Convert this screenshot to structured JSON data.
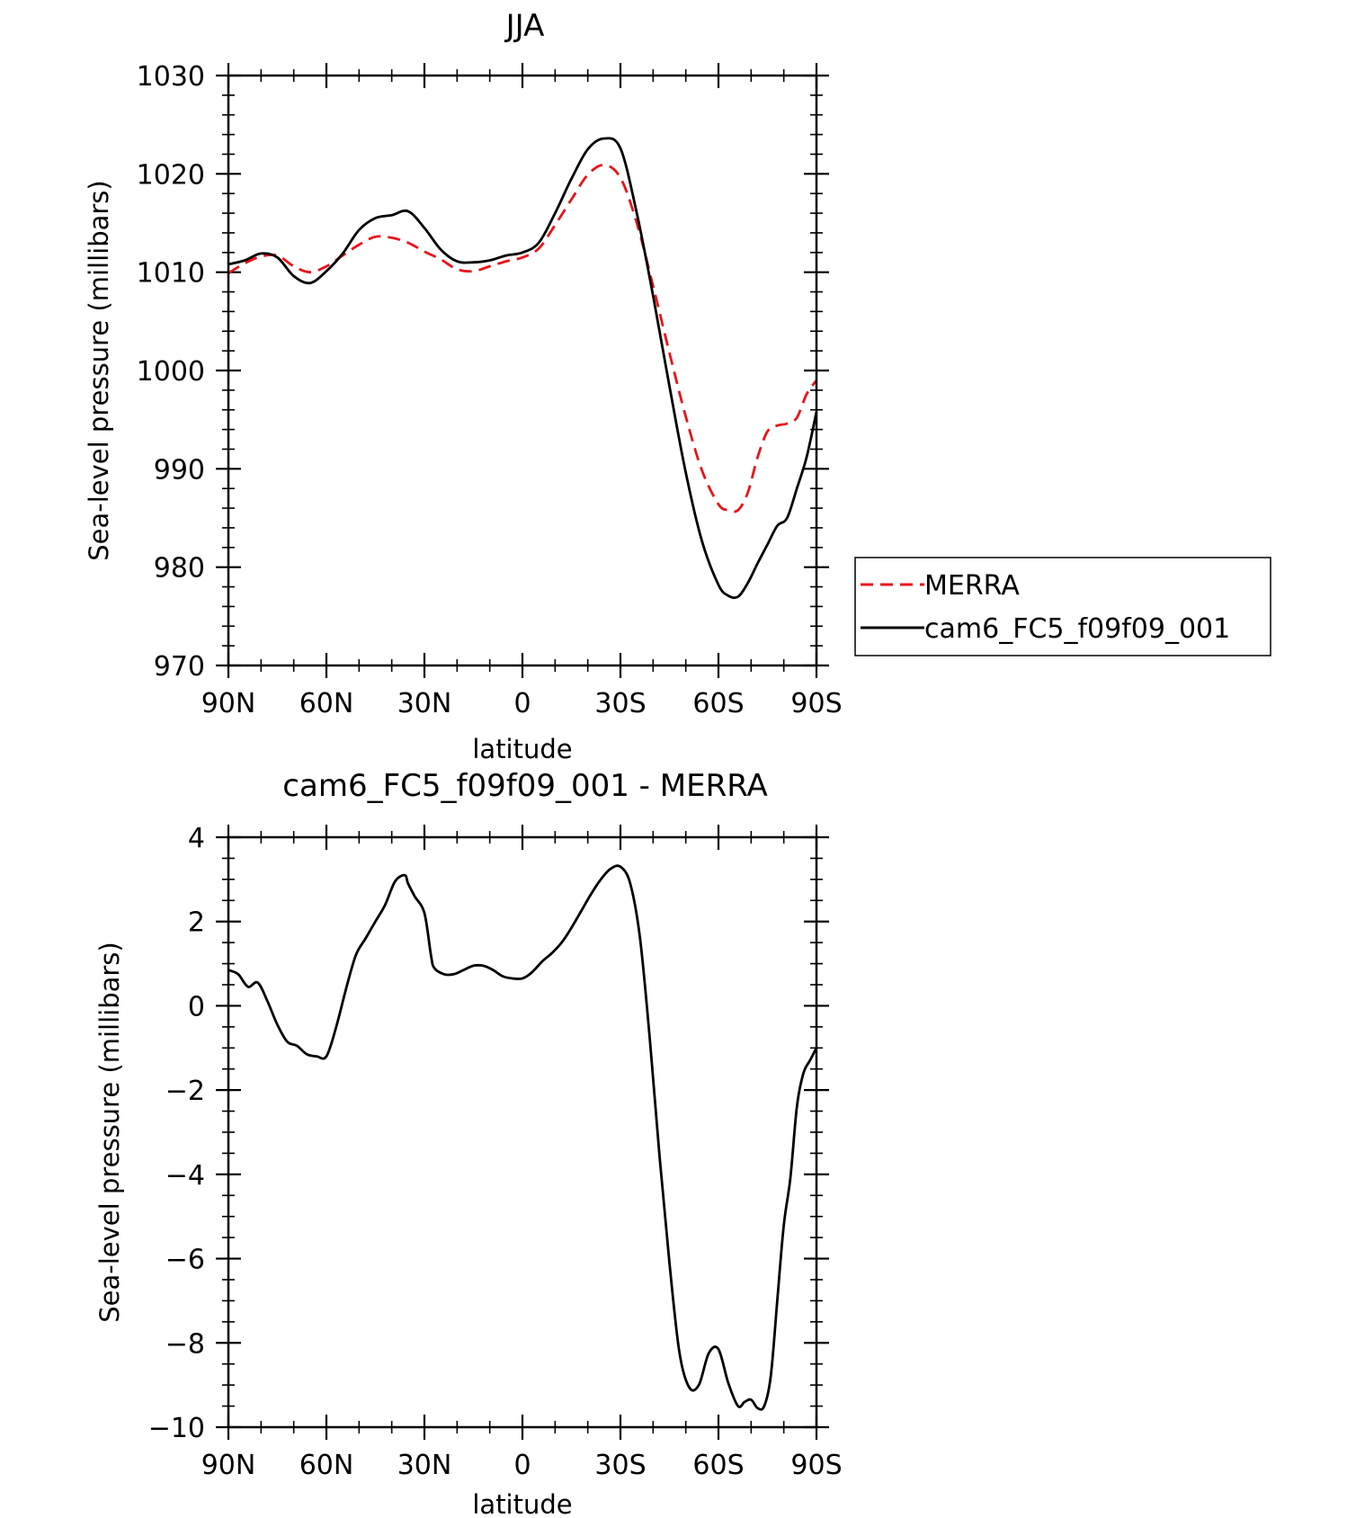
{
  "chart_data": [
    {
      "type": "line",
      "title": "JJA",
      "xlabel": "latitude",
      "ylabel": "Sea-level pressure (millibars)",
      "xlim": [
        90,
        -90
      ],
      "ylim": [
        970,
        1030
      ],
      "xticks": [
        90,
        60,
        30,
        0,
        -30,
        -60,
        -90
      ],
      "xticklabels": [
        "90N",
        "60N",
        "30N",
        "0",
        "30S",
        "60S",
        "90S"
      ],
      "yticks": [
        970,
        980,
        990,
        1000,
        1010,
        1020,
        1030
      ],
      "yticklabels": [
        "970",
        "980",
        "990",
        "1000",
        "1010",
        "1020",
        "1030"
      ],
      "legend": {
        "placement": "right"
      },
      "series": [
        {
          "name": "MERRA",
          "color": "#e8141a",
          "style": "dashed",
          "x": [
            90,
            85,
            80,
            75,
            70,
            65,
            60,
            55,
            50,
            45,
            40,
            35,
            30,
            25,
            20,
            15,
            10,
            5,
            0,
            -5,
            -10,
            -15,
            -20,
            -25,
            -30,
            -35,
            -40,
            -45,
            -50,
            -55,
            -60,
            -63,
            -66,
            -69,
            -72,
            -75,
            -78,
            -81,
            -84,
            -87,
            -90
          ],
          "y": [
            1009.9,
            1010.9,
            1011.6,
            1011.7,
            1010.6,
            1010.0,
            1010.6,
            1011.7,
            1012.8,
            1013.6,
            1013.5,
            1013.0,
            1012.1,
            1011.3,
            1010.3,
            1010.1,
            1010.6,
            1011.1,
            1011.5,
            1012.4,
            1014.8,
            1017.4,
            1019.9,
            1020.9,
            1019.6,
            1015.0,
            1008.6,
            1001.8,
            995.3,
            989.8,
            986.4,
            985.8,
            985.8,
            987.6,
            991.2,
            993.8,
            994.4,
            994.6,
            995.2,
            997.6,
            999.0
          ]
        },
        {
          "name": "cam6_FC5_f09f09_001",
          "color": "#000000",
          "style": "solid",
          "x": [
            90,
            85,
            80,
            75,
            70,
            65,
            60,
            55,
            50,
            45,
            40,
            35,
            30,
            25,
            20,
            15,
            10,
            5,
            0,
            -5,
            -10,
            -15,
            -20,
            -25,
            -30,
            -35,
            -40,
            -45,
            -50,
            -55,
            -60,
            -63,
            -66,
            -69,
            -72,
            -75,
            -78,
            -81,
            -84,
            -87,
            -90
          ],
          "y": [
            1010.8,
            1011.2,
            1011.9,
            1011.5,
            1009.6,
            1008.9,
            1010.1,
            1011.9,
            1014.3,
            1015.5,
            1015.8,
            1016.2,
            1014.5,
            1012.3,
            1011.1,
            1011.0,
            1011.2,
            1011.7,
            1012.0,
            1013.0,
            1016.0,
            1019.5,
            1022.5,
            1023.6,
            1022.6,
            1016.0,
            1007.6,
            998.4,
            989.6,
            982.6,
            978.2,
            977.1,
            977.0,
            978.4,
            980.4,
            982.3,
            984.2,
            985.0,
            988.0,
            991.2,
            995.8
          ]
        }
      ]
    },
    {
      "type": "line",
      "title": "cam6_FC5_f09f09_001 - MERRA",
      "xlabel": "latitude",
      "ylabel": "Sea-level pressure (millibars)",
      "xlim": [
        90,
        -90
      ],
      "ylim": [
        -10,
        4
      ],
      "xticks": [
        90,
        60,
        30,
        0,
        -30,
        -60,
        -90
      ],
      "xticklabels": [
        "90N",
        "60N",
        "30N",
        "0",
        "30S",
        "60S",
        "90S"
      ],
      "yticks": [
        -10,
        -8,
        -6,
        -4,
        -2,
        0,
        2,
        4
      ],
      "yticklabels": [
        "−10",
        "−8",
        "−6",
        "−4",
        "−2",
        "0",
        "2",
        "4"
      ],
      "series": [
        {
          "color": "#000000",
          "style": "solid",
          "x": [
            90,
            87,
            84,
            81,
            78,
            75,
            72,
            69,
            66,
            63,
            60,
            57,
            54,
            51,
            48,
            45,
            42,
            39,
            36,
            35,
            33,
            30,
            28,
            27,
            24,
            21,
            18,
            15,
            12,
            9,
            6,
            3,
            0,
            -3,
            -6,
            -9,
            -12,
            -15,
            -18,
            -21,
            -24,
            -27,
            -30,
            -33,
            -36,
            -39,
            -42,
            -45,
            -48,
            -51,
            -54,
            -57,
            -60,
            -63,
            -66,
            -68,
            -70,
            -72,
            -74,
            -76,
            -78,
            -80,
            -82,
            -84,
            -86,
            -88,
            -90
          ],
          "y": [
            0.85,
            0.75,
            0.45,
            0.55,
            0.1,
            -0.45,
            -0.85,
            -0.95,
            -1.15,
            -1.2,
            -1.2,
            -0.5,
            0.4,
            1.2,
            1.6,
            2.0,
            2.4,
            2.95,
            3.1,
            2.9,
            2.6,
            2.2,
            1.2,
            0.9,
            0.75,
            0.75,
            0.85,
            0.95,
            0.95,
            0.85,
            0.7,
            0.65,
            0.65,
            0.8,
            1.05,
            1.25,
            1.5,
            1.85,
            2.25,
            2.65,
            3.0,
            3.25,
            3.3,
            2.9,
            1.6,
            -0.8,
            -3.6,
            -6.1,
            -8.2,
            -9.05,
            -9.0,
            -8.25,
            -8.15,
            -8.95,
            -9.5,
            -9.4,
            -9.35,
            -9.55,
            -9.5,
            -8.8,
            -7.0,
            -5.2,
            -4.1,
            -2.4,
            -1.6,
            -1.3,
            -1.0
          ]
        }
      ]
    }
  ]
}
